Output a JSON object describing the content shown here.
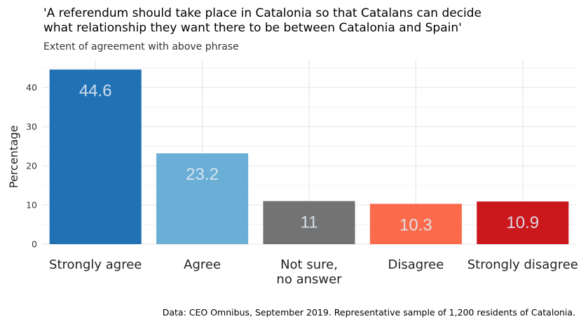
{
  "chart_data": {
    "type": "bar",
    "title_lines": [
      "'A referendum should take place in Catalonia so that Catalans can decide",
      "what relationship they want there to be between Catalonia and Spain'"
    ],
    "subtitle": "Extent of agreement with above phrase",
    "xlabel": "",
    "ylabel": "Percentage",
    "categories": [
      "Strongly agree",
      "Agree",
      "Not sure,\nno answer",
      "Disagree",
      "Strongly disagree"
    ],
    "values": [
      44.6,
      23.2,
      11,
      10.3,
      10.9
    ],
    "value_labels": [
      "44.6",
      "23.2",
      "11",
      "10.3",
      "10.9"
    ],
    "colors": [
      "#2171b5",
      "#6baed6",
      "#737373",
      "#fb6a4a",
      "#cb181d"
    ],
    "ylim": [
      0,
      47
    ],
    "yticks": [
      0,
      10,
      20,
      30,
      40
    ],
    "grid": true,
    "legend": "none",
    "caption": "Data: CEO Omnibus, September 2019. Representative sample of 1,200 residents of Catalonia."
  }
}
